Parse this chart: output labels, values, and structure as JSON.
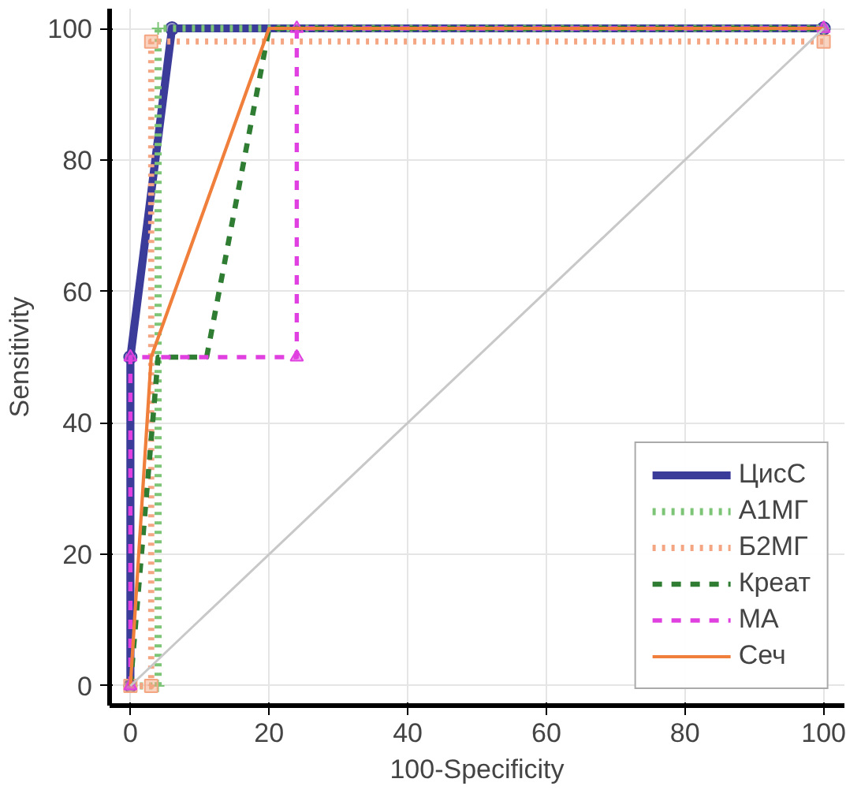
{
  "chart_data": {
    "type": "line",
    "xlabel": "100-Specificity",
    "ylabel": "Sensitivity",
    "xlim": [
      -3,
      103
    ],
    "ylim": [
      -3,
      103
    ],
    "xticks": [
      0,
      20,
      40,
      60,
      80,
      100
    ],
    "yticks": [
      0,
      20,
      40,
      60,
      80,
      100
    ],
    "grid": true,
    "legend": "bottom right",
    "series": [
      {
        "name": "ЦисС",
        "color": "#3b3b9a",
        "line_style": "solid",
        "marker": "circle",
        "x": [
          0,
          0,
          6,
          100
        ],
        "values": [
          0,
          50,
          100,
          100
        ]
      },
      {
        "name": "А1МГ",
        "color": "#7cc576",
        "line_style": "dotted",
        "marker": "cross",
        "x": [
          0,
          4,
          4,
          100
        ],
        "values": [
          0,
          0,
          100,
          100
        ]
      },
      {
        "name": "Б2МГ",
        "color": "#f4a582",
        "line_style": "dotted",
        "marker": "square",
        "x": [
          0,
          3,
          3,
          100
        ],
        "values": [
          0,
          0,
          98,
          98
        ]
      },
      {
        "name": "Креат",
        "color": "#2e7d32",
        "line_style": "dashed",
        "marker": "none",
        "x": [
          0,
          4,
          11,
          20,
          100
        ],
        "values": [
          0,
          50,
          50,
          100,
          100
        ]
      },
      {
        "name": "МА",
        "color": "#e040e0",
        "line_style": "dashed",
        "marker": "triangle",
        "x": [
          0,
          0,
          24,
          24,
          100
        ],
        "values": [
          0,
          50,
          50,
          100,
          100
        ]
      },
      {
        "name": "Сеч",
        "color": "#f07f3c",
        "line_style": "solid",
        "marker": "none",
        "x": [
          0,
          3,
          20,
          100
        ],
        "values": [
          0,
          50,
          100,
          100
        ]
      },
      {
        "color": "#c8c8c8",
        "line_style": "solid",
        "marker": "none",
        "x": [
          0,
          100
        ],
        "values": [
          0,
          100
        ]
      }
    ]
  }
}
